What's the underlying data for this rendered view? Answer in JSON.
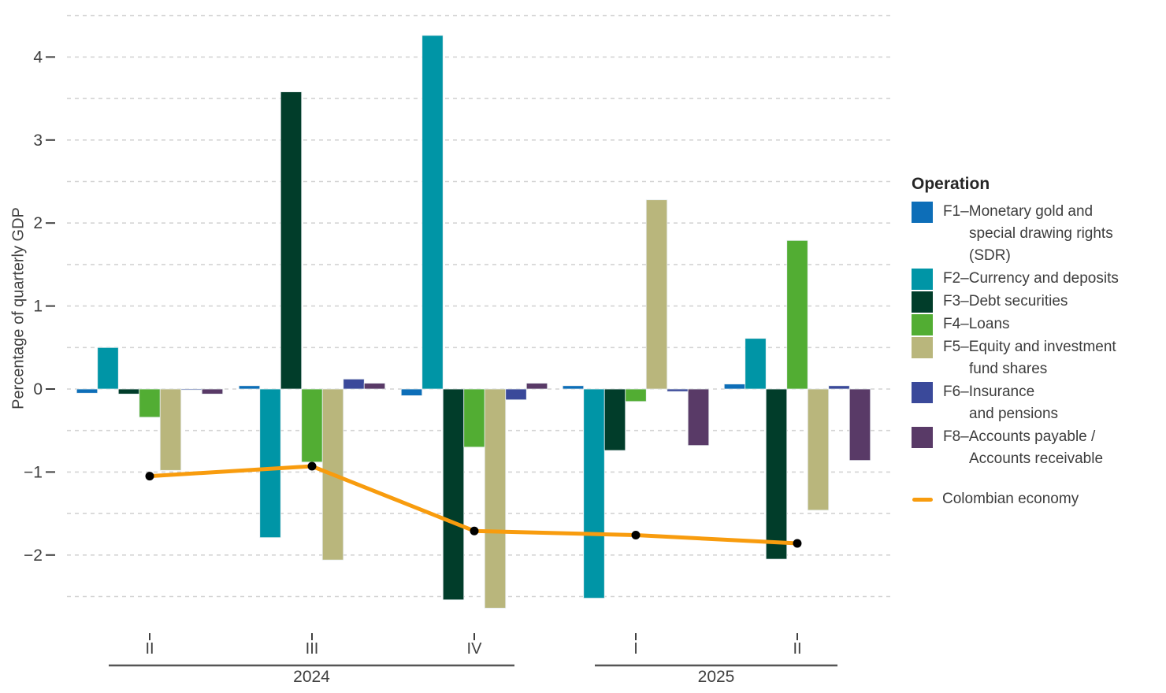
{
  "chart_data": {
    "type": "bar",
    "title": "",
    "ylabel": "Percentage of quarterly GDP",
    "xlabel": "",
    "ylim": [
      -2.7,
      4.6
    ],
    "grid": "horizontal dashed gridlines every 0.5",
    "legend_position": "right",
    "y_ticks": [
      {
        "value": 4,
        "label": "4"
      },
      {
        "value": 3,
        "label": "3"
      },
      {
        "value": 2,
        "label": "2"
      },
      {
        "value": 1,
        "label": "1"
      },
      {
        "value": 0,
        "label": "0"
      },
      {
        "value": -1,
        "label": "−1"
      },
      {
        "value": -2,
        "label": "−2"
      }
    ],
    "gridline_step": 0.5,
    "gridline_max": 4.5,
    "gridline_min": -2.5,
    "facets": [
      {
        "year": "2024",
        "quarters": [
          "II",
          "III",
          "IV"
        ]
      },
      {
        "year": "2025",
        "quarters": [
          "I",
          "II"
        ]
      }
    ],
    "categories": [
      "2024 II",
      "2024 III",
      "2024 IV",
      "2025 I",
      "2025 II"
    ],
    "series": [
      {
        "id": "f1",
        "name": "F1–Monetary gold and special drawing rights (SDR)",
        "color": "#0d6eb8",
        "values": [
          -0.05,
          0.04,
          -0.08,
          0.04,
          0.06
        ]
      },
      {
        "id": "f2",
        "name": "F2–Currency and deposits",
        "color": "#0095a6",
        "values": [
          0.5,
          -1.79,
          4.26,
          -2.52,
          0.61
        ]
      },
      {
        "id": "f3",
        "name": "F3–Debt securities",
        "color": "#013d2a",
        "values": [
          -0.06,
          3.58,
          -2.54,
          -0.74,
          -2.05
        ]
      },
      {
        "id": "f4",
        "name": "F4–Loans",
        "color": "#52ad33",
        "values": [
          -0.34,
          -0.88,
          -0.7,
          -0.15,
          1.79
        ]
      },
      {
        "id": "f5",
        "name": "F5–Equity and investment fund shares",
        "color": "#b9b67c",
        "values": [
          -0.98,
          -2.06,
          -2.64,
          2.28,
          -1.46
        ]
      },
      {
        "id": "f6",
        "name": "F6–Insurance and pensions",
        "color": "#3a499a",
        "values": [
          -0.01,
          0.12,
          -0.13,
          -0.03,
          0.04
        ]
      },
      {
        "id": "f8",
        "name": "F8–Accounts payable / Accounts receivable",
        "color": "#593a67",
        "values": [
          -0.06,
          0.07,
          0.07,
          -0.68,
          -0.86
        ]
      }
    ],
    "line_series": {
      "name": "Colombian economy",
      "color": "#f89c0e",
      "point_color": "#000000",
      "values": [
        -1.05,
        -0.93,
        -1.71,
        -1.76,
        -1.86
      ]
    }
  },
  "legend": {
    "title": "Operation",
    "items": [
      {
        "id": "f1",
        "color": "#0d6eb8",
        "lines": [
          "F1–Monetary gold and",
          "special drawing rights",
          "(SDR)"
        ]
      },
      {
        "id": "f2",
        "color": "#0095a6",
        "lines": [
          "F2–Currency and deposits"
        ]
      },
      {
        "id": "f3",
        "color": "#013d2a",
        "lines": [
          "F3–Debt securities"
        ]
      },
      {
        "id": "f4",
        "color": "#52ad33",
        "lines": [
          "F4–Loans"
        ]
      },
      {
        "id": "f5",
        "color": "#b9b67c",
        "lines": [
          "F5–Equity and investment",
          "fund shares"
        ]
      },
      {
        "id": "f6",
        "color": "#3a499a",
        "lines": [
          "F6–Insurance",
          "and pensions"
        ]
      },
      {
        "id": "f8",
        "color": "#593a67",
        "lines": [
          "F8–Accounts payable /",
          "Accounts receivable"
        ]
      }
    ],
    "line_item": {
      "label": "Colombian economy",
      "color": "#f89c0e"
    }
  }
}
